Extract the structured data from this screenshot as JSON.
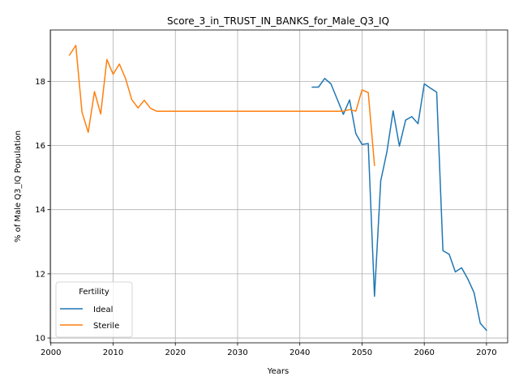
{
  "chart_data": {
    "type": "line",
    "title": "Score_3_in_TRUST_IN_BANKS_for_Male_Q3_IQ",
    "xlabel": "Years",
    "ylabel": "% of Male Q3_IQ Population",
    "xlim": [
      1999.9,
      2073.4
    ],
    "ylim": [
      9.85,
      19.6
    ],
    "xticks": [
      2000,
      2010,
      2020,
      2030,
      2040,
      2050,
      2060,
      2070
    ],
    "yticks": [
      10,
      12,
      14,
      16,
      18
    ],
    "grid": true,
    "legend": {
      "title": "Fertility",
      "placement": "lower-left"
    },
    "series": [
      {
        "name": "Ideal",
        "color": "#1f77b4",
        "x": [
          2042,
          2043,
          2044,
          2045,
          2046,
          2047,
          2048,
          2049,
          2050,
          2051,
          2052,
          2053,
          2054,
          2055,
          2056,
          2057,
          2058,
          2059,
          2060,
          2061,
          2062,
          2063,
          2064,
          2065,
          2066,
          2067,
          2068,
          2069,
          2070
        ],
        "y": [
          17.82,
          17.82,
          18.09,
          17.92,
          17.45,
          16.97,
          17.42,
          16.37,
          16.03,
          16.06,
          11.3,
          14.9,
          15.8,
          17.08,
          15.98,
          16.79,
          16.9,
          16.68,
          17.92,
          17.79,
          17.66,
          12.72,
          12.61,
          12.06,
          12.19,
          11.84,
          11.41,
          10.46,
          10.24
        ]
      },
      {
        "name": "Sterile",
        "color": "#ff7f0e",
        "x": [
          2003,
          2004,
          2005,
          2006,
          2007,
          2008,
          2009,
          2010,
          2011,
          2012,
          2013,
          2014,
          2015,
          2016,
          2017,
          2018,
          2019,
          2020,
          2025,
          2030,
          2035,
          2040,
          2045,
          2046,
          2047,
          2048,
          2049,
          2050,
          2051,
          2052
        ],
        "y": [
          18.82,
          19.12,
          17.04,
          16.41,
          17.68,
          16.98,
          18.68,
          18.22,
          18.54,
          18.09,
          17.43,
          17.17,
          17.41,
          17.16,
          17.07,
          17.07,
          17.07,
          17.07,
          17.07,
          17.07,
          17.07,
          17.07,
          17.07,
          17.07,
          17.07,
          17.12,
          17.07,
          17.73,
          17.65,
          15.38
        ]
      }
    ]
  }
}
